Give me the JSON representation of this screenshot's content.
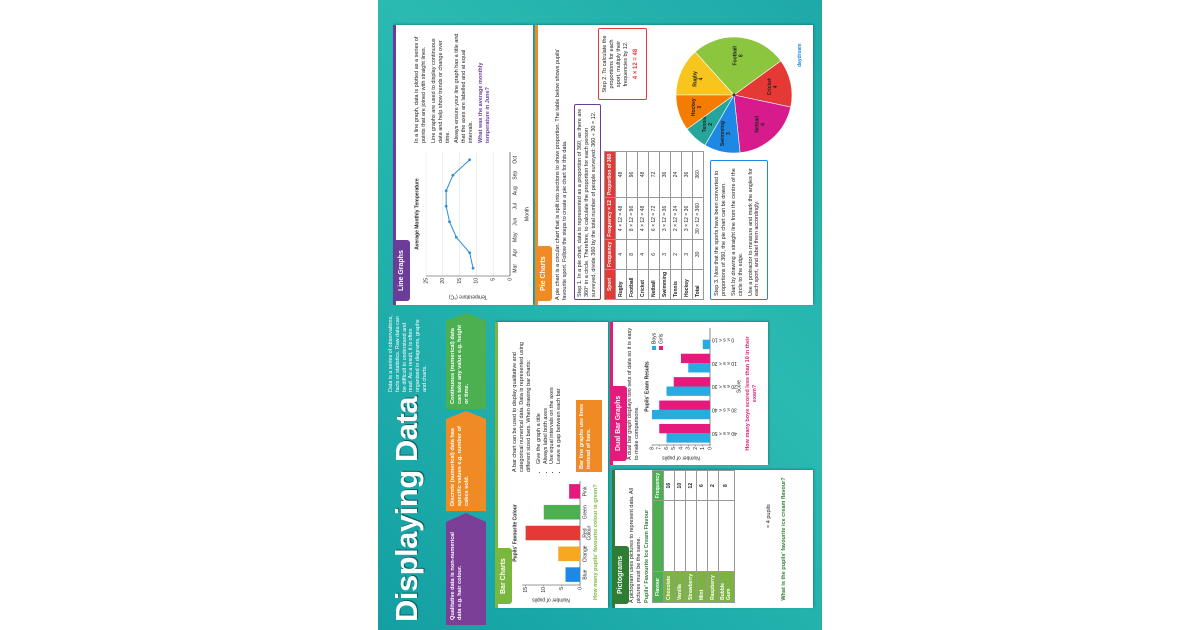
{
  "poster": {
    "title": "Displaying Data",
    "intro": "Data is a series of observations, facts or statistics. Raw data can be difficult to understand and read. As a result, it is often organised in diagrams, graphs and charts.",
    "tags": [
      "Qualitative data is non-numerical data e.g. hair colour.",
      "Discrete (numerical) data has specific values e.g. number of cakes sold.",
      "Continuous (numerical) data can take any value e.g. height or time."
    ],
    "logo": "daydream"
  },
  "line_graphs": {
    "header": "Line Graphs",
    "chart": {
      "type": "line",
      "title": "Average Monthly Temperature",
      "x_label": "Month",
      "y_label": "Temperature (°C)",
      "categories": [
        "Mar",
        "Apr",
        "May",
        "Jun",
        "Jul",
        "Aug",
        "Sep",
        "Oct"
      ],
      "values": [
        11,
        12,
        16,
        18,
        19,
        19,
        17,
        12
      ],
      "ylim": [
        0,
        25
      ],
      "yticks": [
        0,
        5,
        10,
        15,
        20,
        25
      ],
      "color": "#2a8fd6",
      "grid": true
    },
    "paragraphs": [
      "In a line graph, data is plotted as a series of points that are joined with straight lines.",
      "Line graphs are used to display continuous data and help show trends or change over time.",
      "Always ensure your line graph has a title and that the axes are labelled and at equal intervals."
    ],
    "question": "What was the average monthly temperature in June?"
  },
  "pie_charts": {
    "header": "Pie Charts",
    "intro": "A pie chart is a circular chart that is split into sections to show proportion. The table below shows pupils' favourite sport. Follow the steps to create a pie chart for this data.",
    "step1": "Step 1. In a pie chart, data is represented as a proportion of 360, as there are 360° in a circle. Therefore, to calculate the proportion for each person surveyed, divide 360 by the total number of people surveyed: 360 ÷ 30 = 12.",
    "table": {
      "columns": [
        "Sport",
        "Frequency",
        "Frequency × 12",
        "Proportion of 360"
      ],
      "rows": [
        [
          "Rugby",
          4,
          "4 × 12 = 48",
          48
        ],
        [
          "Football",
          8,
          "8 × 12 = 96",
          96
        ],
        [
          "Cricket",
          4,
          "4 × 12 = 48",
          48
        ],
        [
          "Netball",
          6,
          "6 × 12 = 72",
          72
        ],
        [
          "Swimming",
          3,
          "3 × 12 = 36",
          36
        ],
        [
          "Tennis",
          2,
          "2 × 12 = 24",
          24
        ],
        [
          "Hockey",
          3,
          "3 × 12 = 36",
          36
        ],
        [
          "Total",
          30,
          "30 × 12 = 360",
          360
        ]
      ]
    },
    "step2": "Step 2. To calculate the proportions for each sport, multiply their frequencies by 12.",
    "step2_example": "4 × 12 = 48",
    "step3": [
      "Step 3. Now that the sports have been converted to proportions of 360, the pie chart can be drawn.",
      "Start by drawing a straight line from the centre of the circle to the edge.",
      "Use a protractor to measure and mark the angles for each sport, and label them accordingly."
    ],
    "chart": {
      "type": "pie",
      "colors": [
        "#f7c51e",
        "#8cc63f",
        "#e53935",
        "#d81b8c",
        "#1e88e5",
        "#26a69a",
        "#f57c00"
      ]
    }
  },
  "bar_charts": {
    "header": "Bar Charts",
    "chart": {
      "type": "bar",
      "title": "Pupils' Favourite Colour",
      "x_label": "Colour",
      "y_label": "Number of pupils",
      "categories": [
        "Blue",
        "Orange",
        "Red",
        "Green",
        "Pink"
      ],
      "values": [
        4,
        6,
        15,
        10,
        3
      ],
      "colors": [
        "#1e88e5",
        "#f7a823",
        "#e53935",
        "#4caf50",
        "#e6197d"
      ],
      "ylim": [
        0,
        16
      ],
      "yticks": [
        0,
        5,
        10,
        15
      ]
    },
    "intro": "A bar chart can be used to display qualitative and categorical numerical data. Data is represented using different sized bars. When drawing bar charts:",
    "bullets": [
      "Give the graph a title",
      "Always label both axes",
      "Use equal intervals on the axes",
      "Leave a gap between each bar"
    ],
    "note": "Bar line graphs use lines instead of bars.",
    "question": "How many pupils' favourite colour is green?"
  },
  "dual_bar_graphs": {
    "header": "Dual Bar Graphs",
    "intro": "A dual bar graph displays two sets of data so it is easy to make comparisons.",
    "chart": {
      "type": "bar",
      "title": "Pupils' Exam Results",
      "x_label": "Score",
      "y_label": "Number of pupils",
      "categories": [
        "40 ≤ s < 50",
        "30 ≤ s < 40",
        "20 ≤ s < 30",
        "10 ≤ s < 20",
        "0 ≤ s < 10"
      ],
      "series": [
        {
          "name": "Boys",
          "color": "#29abe2",
          "values": [
            6,
            8,
            6,
            3,
            1
          ]
        },
        {
          "name": "Girls",
          "color": "#e6197d",
          "values": [
            7,
            7,
            5,
            4,
            0
          ]
        }
      ],
      "ylim": [
        0,
        8
      ],
      "yticks": [
        0,
        1,
        2,
        3,
        4,
        5,
        6,
        7,
        8
      ]
    },
    "question": "How many boys scored less than 10 in their exam?"
  },
  "pictograms": {
    "header": "Pictograms",
    "intro": "A pictogram uses pictures to represent data. All pictures must be the same.",
    "table_title": "Pupils' Favourite Ice Cream Flavour",
    "columns": [
      "Flavour",
      "Frequency"
    ],
    "rows": [
      [
        "Chocolate",
        16
      ],
      [
        "Vanilla",
        10
      ],
      [
        "Strawberry",
        12
      ],
      [
        "Mint",
        6
      ],
      [
        "Raspberry",
        2
      ],
      [
        "Bubble Gum",
        8
      ]
    ],
    "key": {
      "value": 4,
      "label": "= 4 pupils"
    },
    "question": "What is the pupils' favourite ice cream flavour?"
  }
}
